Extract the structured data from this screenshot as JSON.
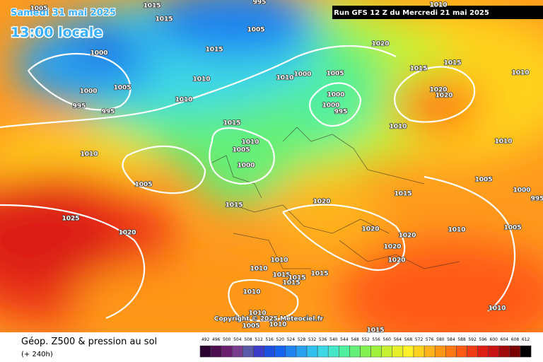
{
  "header": {
    "date": "Samedi 31 mai 2025",
    "time": "13:00 locale",
    "run": "Run GFS 12 Z du Mercredi 21 mai 2025"
  },
  "map": {
    "isobar_labels": [
      "1005",
      "1015",
      "995",
      "1015",
      "1005",
      "1000",
      "1015",
      "1020",
      "1010",
      "1015",
      "1015",
      "1010",
      "1000",
      "1005",
      "995",
      "995",
      "1010",
      "1010",
      "1010",
      "1000",
      "1005",
      "1000",
      "1000",
      "995",
      "1020",
      "1020",
      "1015",
      "1010",
      "1010",
      "1010",
      "1005",
      "1000",
      "1010",
      "1005",
      "1005",
      "1000",
      "995",
      "1015",
      "1020",
      "1015",
      "1025",
      "1020",
      "1010",
      "1005",
      "1020",
      "1020",
      "1020",
      "1020",
      "1010",
      "1010",
      "1015",
      "1015",
      "1015",
      "1015",
      "1010",
      "1010",
      "1010",
      "1005",
      "1010",
      "1015"
    ],
    "copyright": "Copyright © 2025 Meteociel.fr"
  },
  "footer": {
    "title": "Géop. Z500 & pression au sol",
    "lead": "(+ 240h)"
  },
  "legend": {
    "labels": [
      492,
      496,
      500,
      504,
      508,
      512,
      516,
      520,
      524,
      528,
      532,
      536,
      540,
      544,
      548,
      552,
      556,
      560,
      564,
      568,
      572,
      576,
      580,
      584,
      588,
      592,
      596,
      600,
      604,
      608,
      612
    ],
    "colors": [
      "#2b0030",
      "#4b0f50",
      "#6a1e6e",
      "#7a3c8c",
      "#5a5aa8",
      "#3c3cc8",
      "#1e50e0",
      "#1464f0",
      "#1e82f0",
      "#28a0f0",
      "#32c0f0",
      "#3cd8e6",
      "#46e6c8",
      "#50f0a0",
      "#64f078",
      "#82f050",
      "#a0f03c",
      "#c8f032",
      "#e6f028",
      "#fff028",
      "#ffd21e",
      "#ffb41e",
      "#ff9614",
      "#ff7814",
      "#ff5a14",
      "#f03c14",
      "#dc1e14",
      "#c81414",
      "#a00a0a",
      "#780000",
      "#000000"
    ]
  }
}
